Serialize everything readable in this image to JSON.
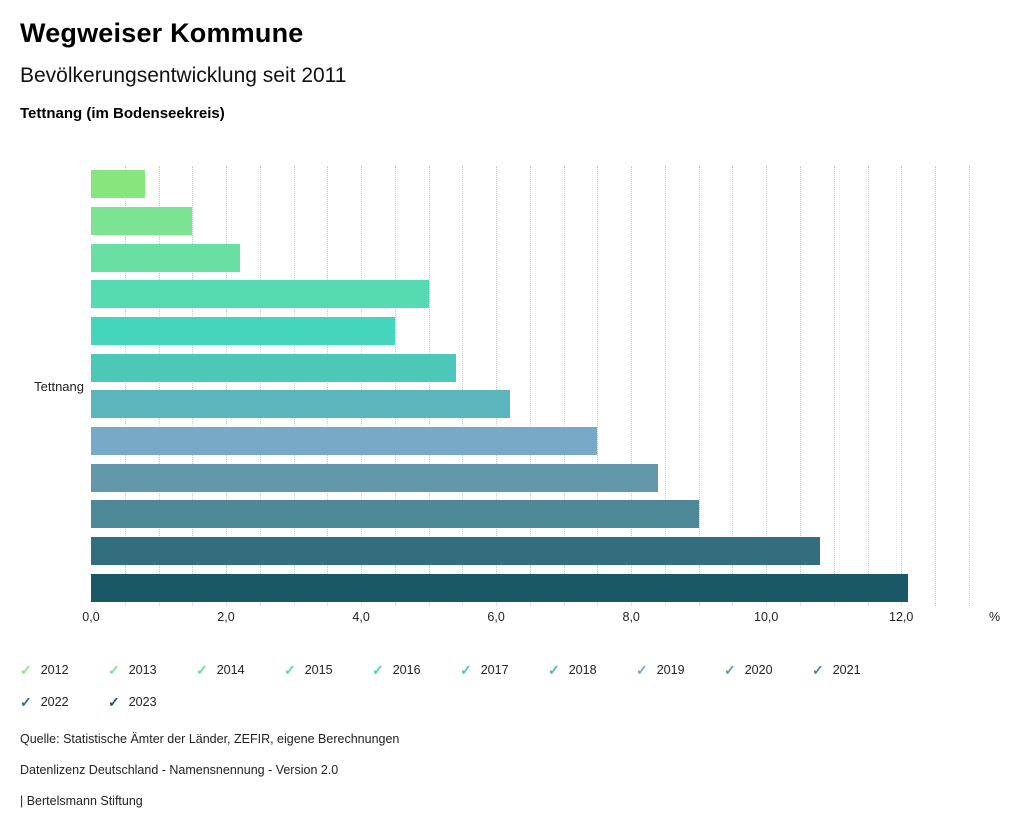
{
  "header": {
    "title": "Wegweiser Kommune",
    "subtitle": "Bevölkerungsentwicklung seit 2011",
    "region": "Tettnang (im Bodenseekreis)"
  },
  "icons": {
    "check_glyph": "✓"
  },
  "chart_data": {
    "type": "bar",
    "orientation": "horizontal",
    "title": "Bevölkerungsentwicklung seit 2011",
    "category": "Tettnang",
    "series": [
      {
        "name": "2012",
        "value": 0.8,
        "color": "#86e57c"
      },
      {
        "name": "2013",
        "value": 1.5,
        "color": "#7ce392"
      },
      {
        "name": "2014",
        "value": 2.2,
        "color": "#69dfa3"
      },
      {
        "name": "2015",
        "value": 5.0,
        "color": "#55dab2"
      },
      {
        "name": "2016",
        "value": 4.5,
        "color": "#45d5bd"
      },
      {
        "name": "2017",
        "value": 5.4,
        "color": "#4bc8b7"
      },
      {
        "name": "2018",
        "value": 6.2,
        "color": "#5ab5bd"
      },
      {
        "name": "2019",
        "value": 7.5,
        "color": "#77aac6"
      },
      {
        "name": "2020",
        "value": 8.4,
        "color": "#6298a9"
      },
      {
        "name": "2021",
        "value": 9.0,
        "color": "#4d8896"
      },
      {
        "name": "2022",
        "value": 10.8,
        "color": "#336e7e"
      },
      {
        "name": "2023",
        "value": 12.1,
        "color": "#1a5866"
      }
    ],
    "xlim": [
      0,
      13.3
    ],
    "xticks": [
      0,
      2,
      4,
      6,
      8,
      10,
      12
    ],
    "xtick_labels": [
      "0,0",
      "2,0",
      "4,0",
      "6,0",
      "8,0",
      "10,0",
      "12,0"
    ],
    "xlabel_unit": "%",
    "grid": "vertical-dotted",
    "gridline_step": 0.5,
    "legend_position": "bottom"
  },
  "footer": {
    "source": "Quelle: Statistische Ämter der Länder, ZEFIR, eigene Berechnungen",
    "license": "Datenlizenz Deutschland - Namensnennung - Version 2.0",
    "attribution": "| Bertelsmann Stiftung"
  }
}
